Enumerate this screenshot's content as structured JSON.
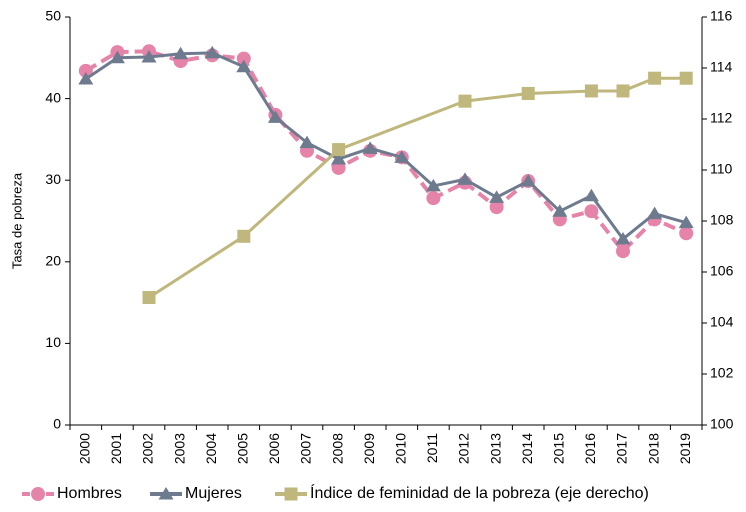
{
  "chart_data": {
    "type": "line",
    "y_label": "Tasa de pobreza",
    "categories": [
      "2000",
      "2001",
      "2002",
      "2003",
      "2004",
      "2005",
      "2006",
      "2007",
      "2008",
      "2009",
      "2010",
      "2011",
      "2012",
      "2013",
      "2014",
      "2015",
      "2016",
      "2017",
      "2018",
      "2019"
    ],
    "ylim": [
      0,
      50
    ],
    "yticks": [
      0,
      10,
      20,
      30,
      40,
      50
    ],
    "y2lim": [
      100,
      116
    ],
    "y2ticks": [
      100,
      102,
      104,
      106,
      108,
      110,
      112,
      114,
      116
    ],
    "series": [
      {
        "name": "Hombres",
        "color": "#e683a9",
        "marker": "circle",
        "dashed": true,
        "values": [
          43.4,
          45.7,
          45.8,
          44.6,
          45.3,
          44.9,
          38.0,
          33.6,
          31.5,
          33.6,
          32.8,
          27.8,
          29.7,
          26.7,
          29.9,
          25.2,
          26.2,
          21.3,
          25.2,
          23.5
        ]
      },
      {
        "name": "Mujeres",
        "color": "#6e7b8f",
        "marker": "triangle",
        "dashed": false,
        "values": [
          42.4,
          45.0,
          45.1,
          45.5,
          45.6,
          43.9,
          37.7,
          34.6,
          32.6,
          33.9,
          32.8,
          29.3,
          30.1,
          27.9,
          29.9,
          26.2,
          28.1,
          22.8,
          25.9,
          24.8
        ]
      },
      {
        "name": "Índice de feminidad de la pobreza (eje derecho)",
        "color": "#bfb77c",
        "marker": "square",
        "dashed": false,
        "axis": "y2",
        "x": [
          "2002",
          "2005",
          "2008",
          "2012",
          "2014",
          "2016",
          "2017",
          "2018",
          "2019"
        ],
        "values": [
          105.0,
          107.4,
          110.8,
          112.7,
          113.0,
          113.1,
          113.1,
          113.6,
          113.6
        ]
      }
    ]
  }
}
